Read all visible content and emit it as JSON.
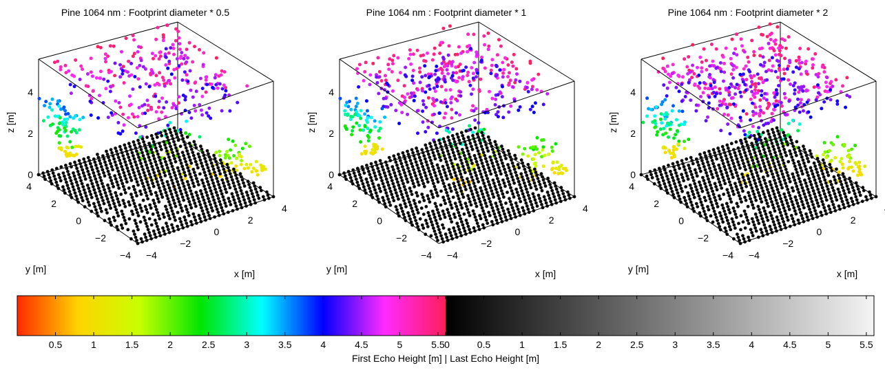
{
  "chart_data": {
    "type": "scatter",
    "plots": [
      {
        "title": "Pine 1064 nm : Footprint diameter * 0.5",
        "xlabel": "x [m]",
        "ylabel": "y [m]",
        "zlabel": "z [m]",
        "xlim": [
          -4,
          4
        ],
        "ylim": [
          -4,
          4
        ],
        "zlim": [
          0,
          5.6
        ],
        "xticks": [
          "−4",
          "−2",
          "0",
          "2",
          "4"
        ],
        "yticks": [
          "−4",
          "−2",
          "0",
          "2",
          "4"
        ],
        "zticks": [
          "0",
          "2",
          "4"
        ]
      },
      {
        "title": "Pine 1064 nm : Footprint diameter * 1",
        "xlabel": "x [m]",
        "ylabel": "y [m]",
        "zlabel": "z [m]",
        "xlim": [
          -4,
          4
        ],
        "ylim": [
          -4,
          4
        ],
        "zlim": [
          0,
          5.6
        ],
        "xticks": [
          "−4",
          "−2",
          "0",
          "2",
          "4"
        ],
        "yticks": [
          "−4",
          "−2",
          "0",
          "2",
          "4"
        ],
        "zticks": [
          "0",
          "2",
          "4"
        ]
      },
      {
        "title": "Pine 1064 nm : Footprint diameter * 2",
        "xlabel": "x [m]",
        "ylabel": "y [m]",
        "zlabel": "z [m]",
        "xlim": [
          -4,
          4
        ],
        "ylim": [
          -4,
          4
        ],
        "zlim": [
          0,
          5.6
        ],
        "xticks": [
          "−4",
          "−2",
          "0",
          "2",
          "4"
        ],
        "yticks": [
          "−4",
          "−2",
          "0",
          "2",
          "4"
        ],
        "zticks": [
          "0",
          "2",
          "4"
        ]
      }
    ],
    "colorbar": {
      "label": "First Echo Height [m] | Last Echo Height [m]",
      "range": [
        0,
        5.6
      ],
      "first_echo_ticks": [
        "0.5",
        "1",
        "1.5",
        "2",
        "2.5",
        "3",
        "3.5",
        "4",
        "4.5",
        "5",
        "5.5"
      ],
      "last_echo_ticks": [
        "0",
        "0.5",
        "1",
        "1.5",
        "2",
        "2.5",
        "3",
        "3.5",
        "4",
        "4.5",
        "5",
        "5.5"
      ],
      "first_echo_colors": [
        "#ff2a00",
        "#ffd400",
        "#c8ff00",
        "#00e600",
        "#00ffff",
        "#0000ff",
        "#ff2aff",
        "#ff1e5a"
      ],
      "last_echo_colors": [
        "#000000",
        "#f4f4f4"
      ]
    }
  }
}
